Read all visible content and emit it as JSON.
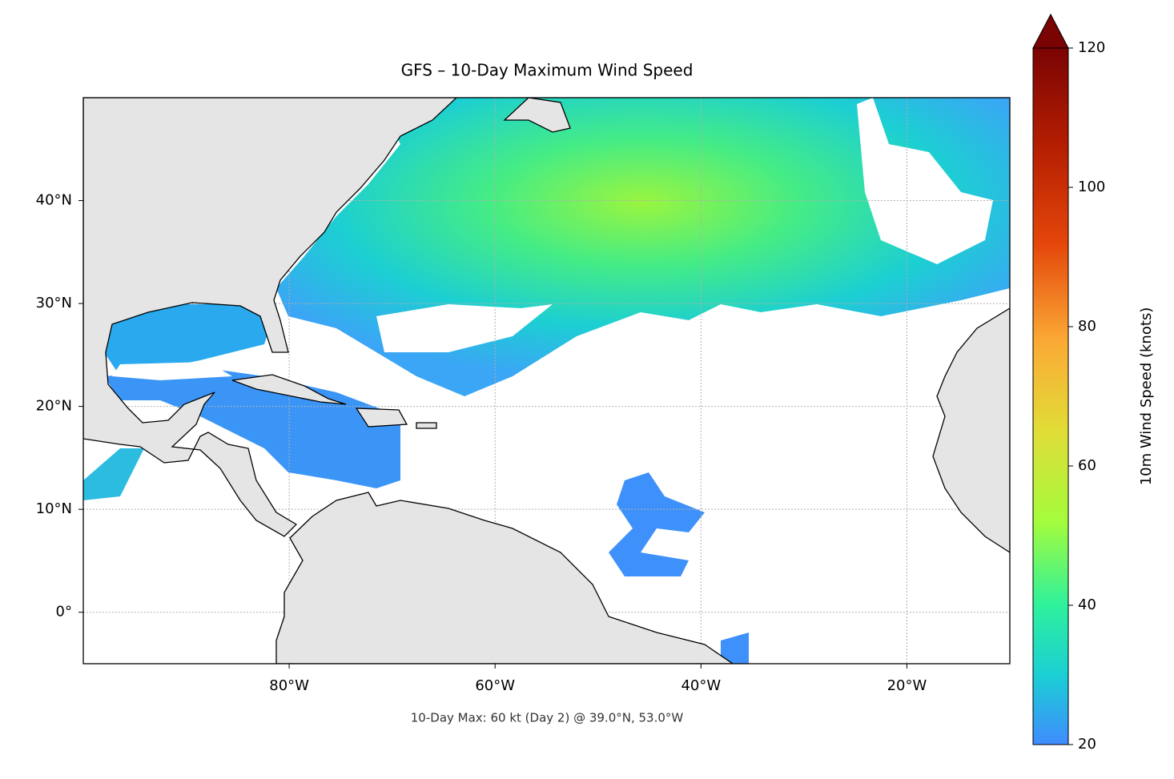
{
  "title": "GFS – 10-Day Maximum Wind Speed",
  "footnote": "10-Day Max: 60 kt (Day 2) @ 39.0°N, 53.0°W",
  "map": {
    "xlim": [
      -100,
      -10
    ],
    "ylim": [
      -5,
      50
    ],
    "xticks": [
      {
        "value": -80,
        "label": "80°W"
      },
      {
        "value": -60,
        "label": "60°W"
      },
      {
        "value": -40,
        "label": "40°W"
      },
      {
        "value": -20,
        "label": "20°W"
      }
    ],
    "yticks": [
      {
        "value": 0,
        "label": "0°"
      },
      {
        "value": 10,
        "label": "10°N"
      },
      {
        "value": 20,
        "label": "20°N"
      },
      {
        "value": 30,
        "label": "30°N"
      },
      {
        "value": 40,
        "label": "40°N"
      }
    ],
    "grid": true
  },
  "colorbar": {
    "label": "10m Wind Speed (knots)",
    "lim": [
      20,
      120
    ],
    "ticks": [
      20,
      40,
      60,
      80,
      100,
      120
    ],
    "extend": "max"
  }
}
